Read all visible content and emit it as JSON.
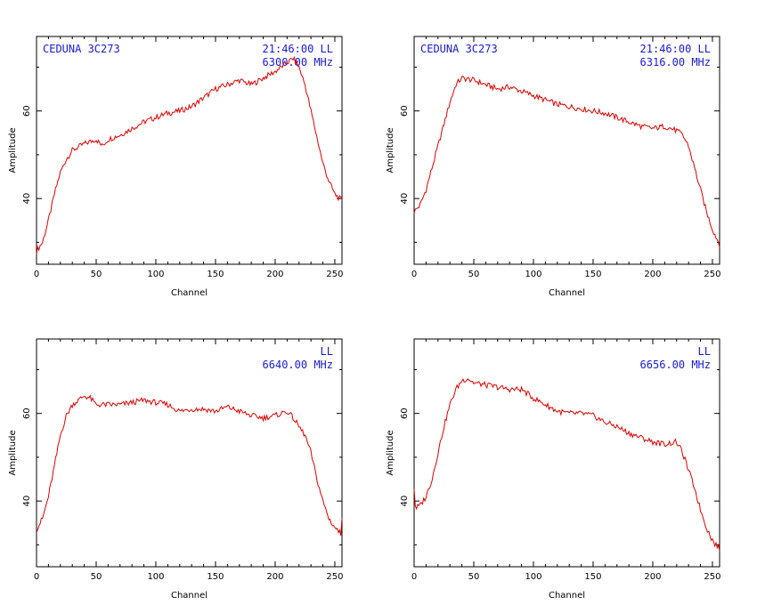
{
  "chart_data": [
    {
      "type": "line",
      "xlabel": "Channel",
      "ylabel": "Amplitude",
      "xlim": [
        0,
        256
      ],
      "ylim": [
        25,
        77
      ],
      "xticks": [
        0,
        50,
        100,
        150,
        200,
        250
      ],
      "yticks": [
        40,
        60
      ],
      "annotations": {
        "source": "CEDUNA 3C273",
        "time": "21:46:00  LL",
        "freq": "6300.00 MHz"
      },
      "series": [
        {
          "x": [
            0,
            5,
            10,
            15,
            20,
            25,
            30,
            40,
            50,
            55,
            60,
            70,
            80,
            90,
            100,
            110,
            120,
            130,
            140,
            150,
            160,
            170,
            180,
            190,
            200,
            210,
            215,
            220,
            225,
            230,
            235,
            240,
            245,
            250,
            256
          ],
          "values": [
            28,
            30,
            35,
            41,
            46,
            49,
            51,
            52.5,
            53.5,
            52,
            53.5,
            54.5,
            56,
            57.5,
            58.5,
            59.5,
            60,
            61,
            63,
            65,
            66,
            67,
            66,
            67.5,
            69,
            71,
            72,
            70,
            66,
            60,
            54,
            48,
            44,
            41,
            39.5
          ]
        }
      ]
    },
    {
      "type": "line",
      "xlabel": "Channel",
      "ylabel": "Amplitude",
      "xlim": [
        0,
        256
      ],
      "ylim": [
        25,
        77
      ],
      "xticks": [
        0,
        50,
        100,
        150,
        200,
        250
      ],
      "yticks": [
        40,
        60
      ],
      "annotations": {
        "source": "CEDUNA 3C273",
        "time": "21:46:00  LL",
        "freq": "6316.00 MHz"
      },
      "series": [
        {
          "x": [
            0,
            5,
            10,
            15,
            20,
            25,
            30,
            35,
            40,
            50,
            60,
            70,
            80,
            90,
            100,
            110,
            120,
            130,
            140,
            150,
            160,
            170,
            180,
            190,
            200,
            210,
            220,
            225,
            230,
            235,
            240,
            245,
            250,
            256
          ],
          "values": [
            37,
            38.5,
            42,
            47,
            52,
            57,
            62,
            66,
            67.5,
            67,
            66,
            65,
            65.5,
            64.5,
            63.5,
            62.5,
            61.5,
            61,
            60.5,
            60,
            59.5,
            58.5,
            57.5,
            56.5,
            56,
            56.5,
            55.5,
            54.5,
            52,
            47,
            42,
            37,
            33,
            29.5
          ]
        }
      ]
    },
    {
      "type": "line",
      "xlabel": "Channel",
      "ylabel": "Amplitude",
      "xlim": [
        0,
        256
      ],
      "ylim": [
        25,
        77
      ],
      "xticks": [
        0,
        50,
        100,
        150,
        200,
        250
      ],
      "yticks": [
        40,
        60
      ],
      "annotations": {
        "source": "",
        "time": "LL",
        "freq": "6640.00 MHz"
      },
      "series": [
        {
          "x": [
            0,
            5,
            10,
            15,
            20,
            25,
            30,
            35,
            40,
            45,
            50,
            60,
            70,
            80,
            90,
            100,
            110,
            120,
            130,
            140,
            150,
            160,
            170,
            180,
            190,
            200,
            210,
            215,
            220,
            225,
            230,
            235,
            240,
            245,
            250,
            255,
            256
          ],
          "values": [
            33.5,
            36,
            41,
            48,
            55,
            59.5,
            62,
            63,
            64,
            63.5,
            62,
            62,
            62,
            62.5,
            63,
            62.5,
            62,
            60.5,
            61,
            61,
            60.5,
            61.5,
            60.5,
            59.5,
            59,
            59.5,
            60.5,
            59,
            57,
            55,
            51,
            45,
            40,
            36,
            34,
            32.5,
            36.5
          ]
        }
      ]
    },
    {
      "type": "line",
      "xlabel": "Channel",
      "ylabel": "Amplitude",
      "xlim": [
        0,
        256
      ],
      "ylim": [
        25,
        77
      ],
      "xticks": [
        0,
        50,
        100,
        150,
        200,
        250
      ],
      "yticks": [
        40,
        60
      ],
      "annotations": {
        "source": "",
        "time": "LL",
        "freq": "6656.00 MHz"
      },
      "series": [
        {
          "x": [
            0,
            1,
            2,
            5,
            10,
            15,
            20,
            25,
            30,
            35,
            40,
            45,
            50,
            60,
            70,
            80,
            90,
            100,
            110,
            120,
            130,
            140,
            150,
            160,
            170,
            180,
            190,
            200,
            210,
            220,
            225,
            230,
            235,
            240,
            245,
            250,
            256
          ],
          "values": [
            43,
            39,
            38.5,
            39,
            41,
            45,
            51,
            57,
            62,
            65.5,
            67.5,
            68,
            67,
            66.5,
            66,
            65.5,
            65.5,
            63.5,
            62,
            60.5,
            60,
            60,
            59.5,
            58,
            57,
            55.5,
            54.5,
            53.5,
            53,
            53.5,
            51,
            47,
            43,
            38,
            34,
            31,
            29
          ]
        }
      ]
    }
  ]
}
